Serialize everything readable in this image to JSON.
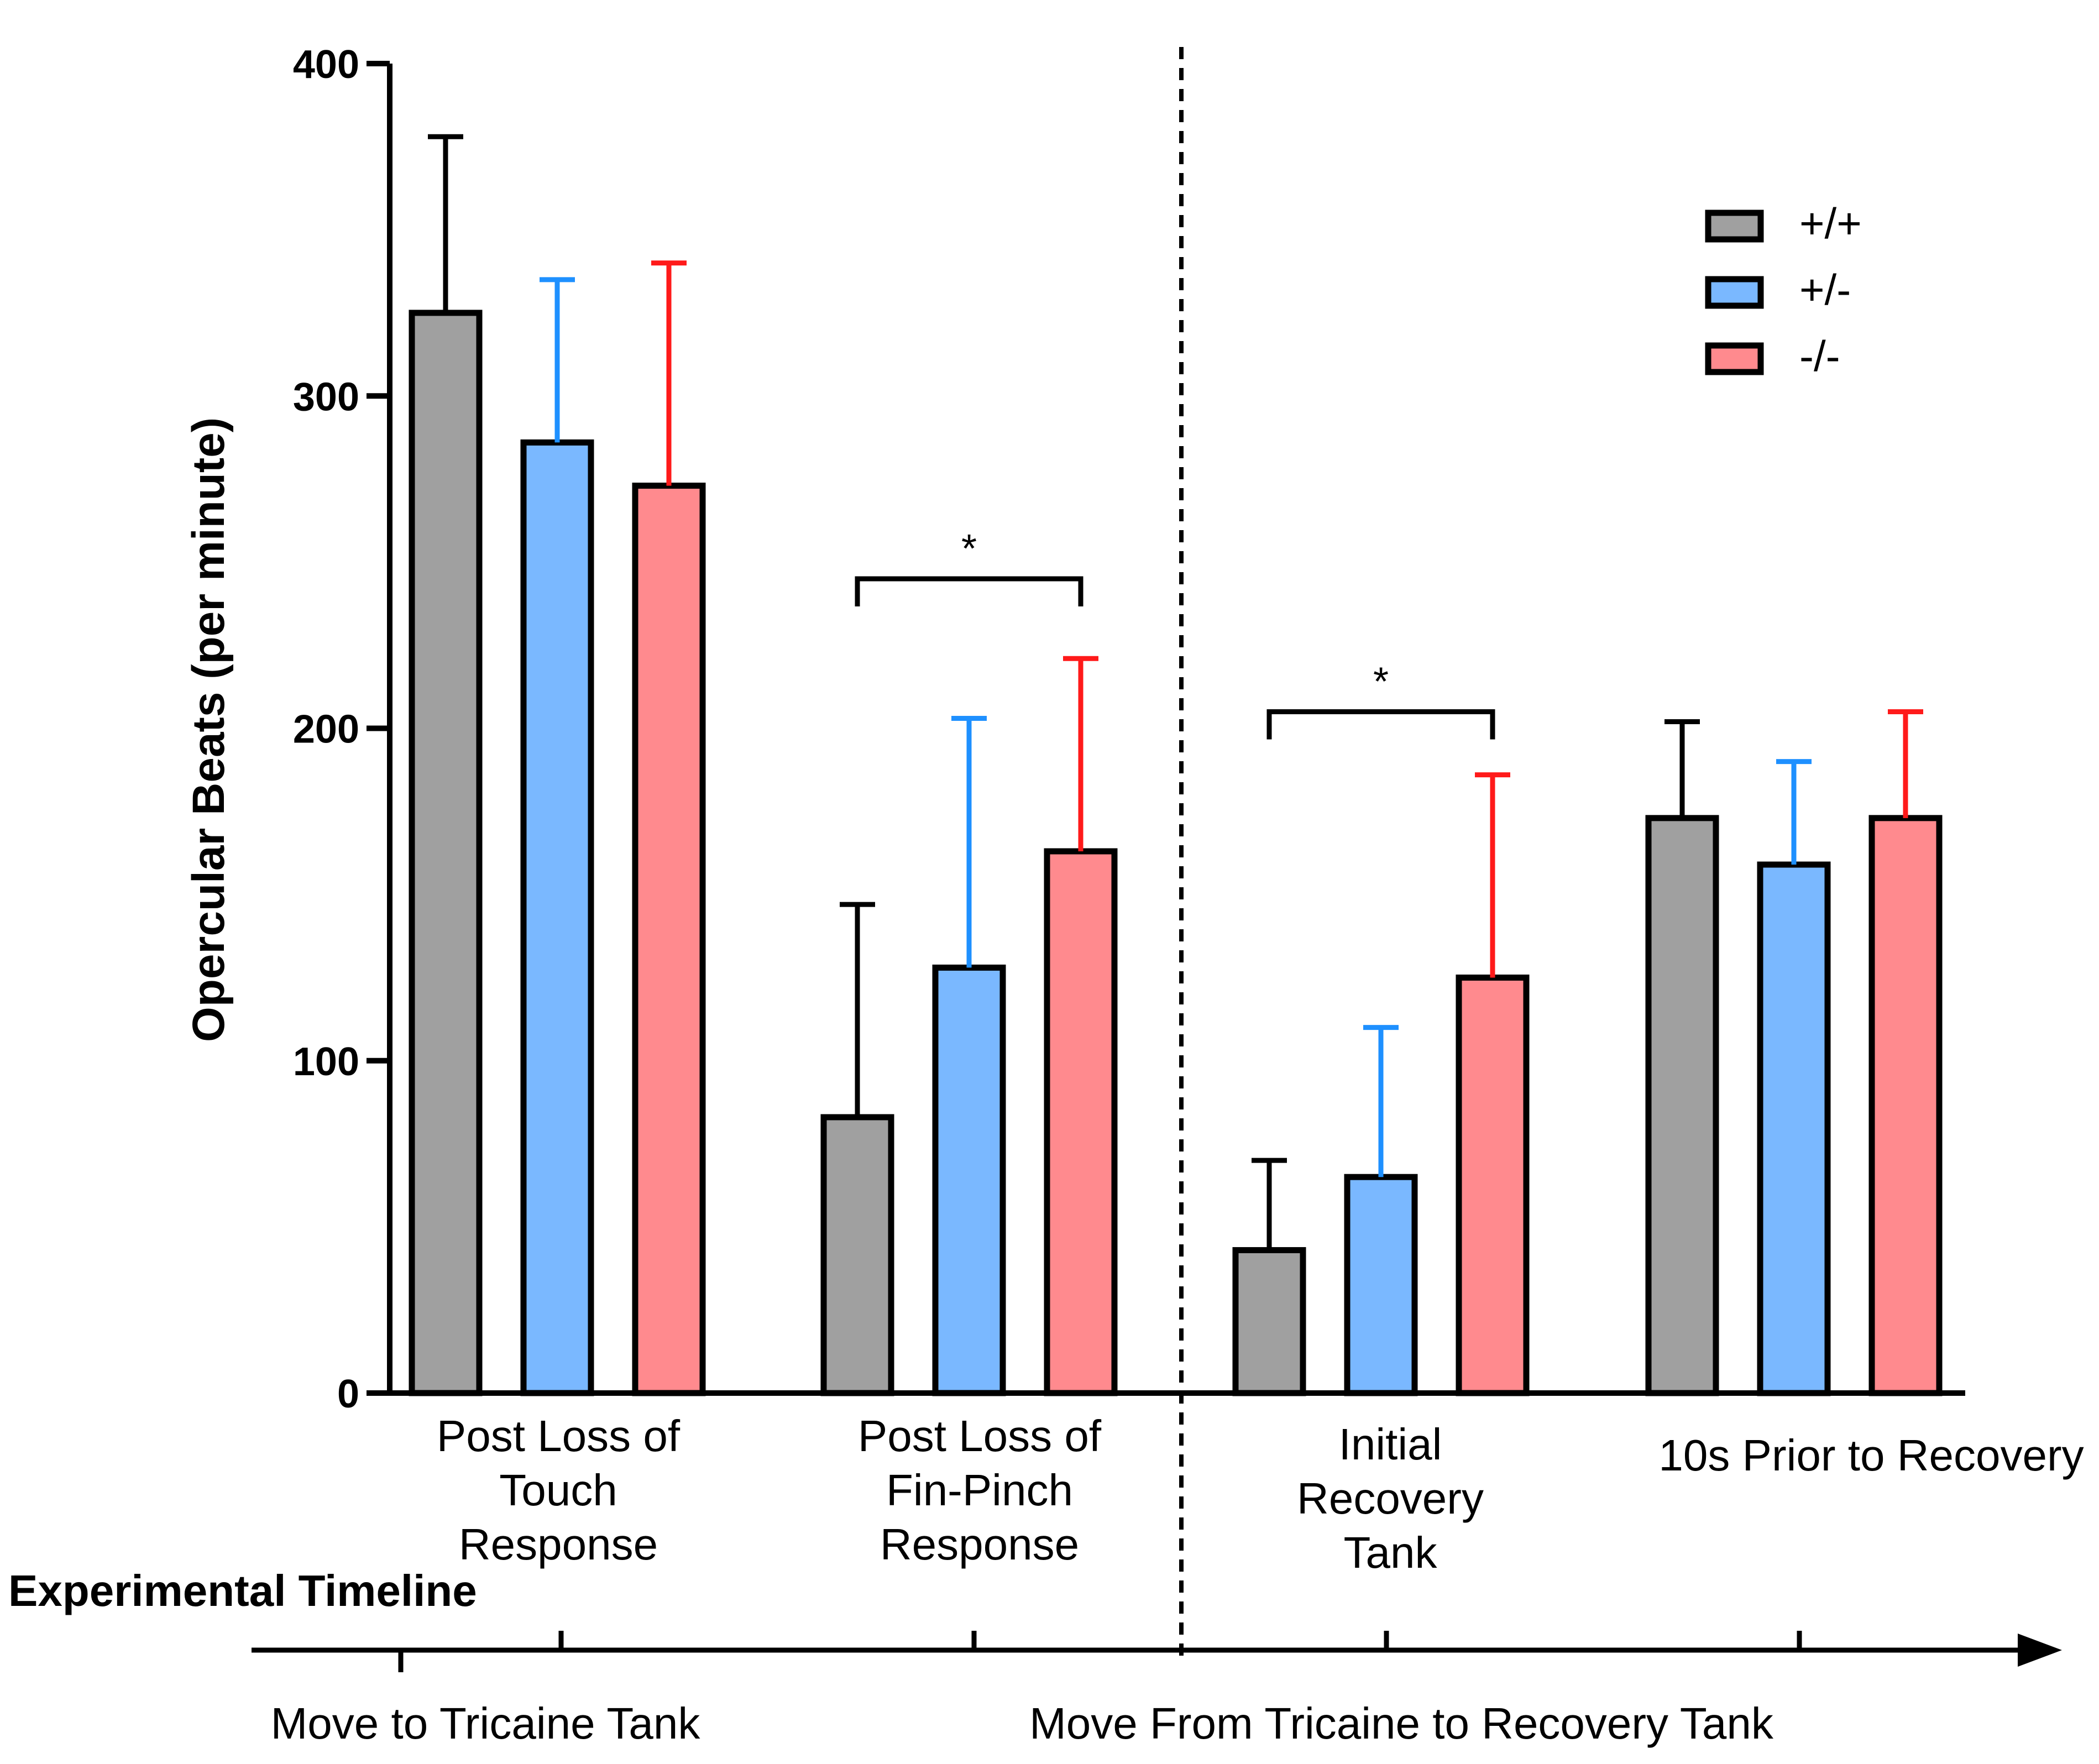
{
  "chart_data": {
    "type": "bar",
    "title": "",
    "xlabel": "",
    "ylabel": "Opercular Beats (per minute)",
    "ylim": [
      0,
      400
    ],
    "y_ticks": [
      "0",
      "100",
      "200",
      "300",
      "400"
    ],
    "grid": false,
    "legend_position": "top-right",
    "categories": [
      [
        "Post Loss of",
        "Touch",
        "Response"
      ],
      [
        "Post Loss of",
        "Fin-Pinch",
        "Response"
      ],
      [
        "Initial",
        "Recovery",
        "Tank"
      ],
      [
        "10s Prior to Recovery"
      ]
    ],
    "series": [
      {
        "name": "+/+",
        "fill": "#a0a0a0",
        "error_color": "#000000",
        "values": [
          325,
          83,
          43,
          173
        ],
        "error_upper": [
          378,
          147,
          70,
          202
        ]
      },
      {
        "name": "+/-",
        "fill": "#7ab8ff",
        "error_color": "#1e90ff",
        "values": [
          286,
          128,
          65,
          159
        ],
        "error_upper": [
          335,
          203,
          110,
          190
        ]
      },
      {
        "name": "-/-",
        "fill": "#ff8a8e",
        "error_color": "#ff1a1a",
        "values": [
          273,
          163,
          125,
          173
        ],
        "error_upper": [
          340,
          221,
          186,
          205
        ]
      }
    ],
    "significance": [
      {
        "category": 1,
        "from_series": 0,
        "to_series": 2,
        "label": "*",
        "y": 245
      },
      {
        "category": 2,
        "from_series": 0,
        "to_series": 2,
        "label": "*",
        "y": 205
      }
    ]
  },
  "timeline": {
    "title": "Experimental Timeline",
    "start_label": "Move to Tricaine Tank",
    "middle_label": "Move From Tricaine to Recovery Tank"
  }
}
